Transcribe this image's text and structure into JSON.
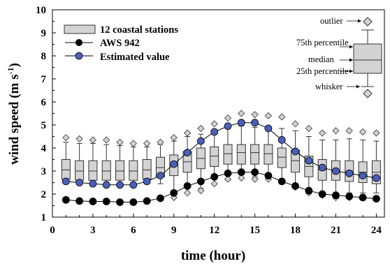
{
  "chart_data": {
    "type": "box+line",
    "xlabel": "time (hour)",
    "ylabel": "wind speed (m s",
    "ylabel_sup": "-1",
    "ylabel_end": ")",
    "xlim": [
      0,
      24.6
    ],
    "ylim": [
      1,
      10
    ],
    "xticks": [
      0,
      3,
      6,
      9,
      12,
      15,
      18,
      21,
      24
    ],
    "yticks": [
      1,
      2,
      3,
      4,
      5,
      6,
      7,
      8,
      9,
      10
    ],
    "hours": [
      1,
      2,
      3,
      4,
      5,
      6,
      7,
      8,
      9,
      10,
      11,
      12,
      13,
      14,
      15,
      16,
      17,
      18,
      19,
      20,
      21,
      22,
      23,
      24
    ],
    "boxes": {
      "name": "12 coastal stations",
      "whisker_low": [
        2.45,
        2.45,
        2.45,
        2.45,
        2.45,
        2.45,
        2.45,
        2.45,
        2.0,
        2.05,
        2.25,
        2.45,
        2.6,
        2.7,
        2.75,
        2.7,
        2.6,
        2.45,
        2.15,
        2.05,
        2.05,
        2.05,
        2.05,
        2.05
      ],
      "q1": [
        2.65,
        2.6,
        2.6,
        2.6,
        2.6,
        2.6,
        2.65,
        2.75,
        2.8,
        2.95,
        3.1,
        3.2,
        3.3,
        3.3,
        3.3,
        3.3,
        3.15,
        2.95,
        2.75,
        2.6,
        2.6,
        2.55,
        2.5,
        2.45
      ],
      "median": [
        3.05,
        3.0,
        3.0,
        3.0,
        3.0,
        3.0,
        3.05,
        3.15,
        3.25,
        3.4,
        3.55,
        3.65,
        3.75,
        3.8,
        3.8,
        3.75,
        3.6,
        3.45,
        3.2,
        3.05,
        3.0,
        3.0,
        2.95,
        2.95
      ],
      "q3": [
        3.5,
        3.45,
        3.45,
        3.45,
        3.45,
        3.45,
        3.5,
        3.6,
        3.7,
        3.85,
        4.0,
        4.05,
        4.15,
        4.15,
        4.15,
        4.15,
        4.0,
        3.9,
        3.65,
        3.5,
        3.45,
        3.45,
        3.4,
        3.45
      ],
      "whisker_high": [
        4.25,
        4.2,
        4.2,
        4.15,
        4.1,
        4.05,
        4.05,
        4.15,
        4.3,
        4.5,
        4.6,
        4.75,
        4.85,
        4.95,
        4.9,
        4.85,
        4.85,
        4.75,
        4.5,
        4.35,
        4.35,
        4.4,
        4.35,
        4.3
      ],
      "outlier_high": [
        4.45,
        4.4,
        4.35,
        4.35,
        4.25,
        4.2,
        4.2,
        4.25,
        4.45,
        4.65,
        4.85,
        5.05,
        5.3,
        5.5,
        5.45,
        5.4,
        5.35,
        5.05,
        4.85,
        4.65,
        4.75,
        4.75,
        4.7,
        4.65
      ],
      "outlier_low": [
        null,
        null,
        null,
        null,
        null,
        null,
        null,
        null,
        1.85,
        2.05,
        2.15,
        2.45,
        2.65,
        2.7,
        2.65,
        2.65,
        2.55,
        2.3,
        2.05,
        1.95,
        1.85,
        1.85,
        1.85,
        null
      ]
    },
    "series": [
      {
        "name": "AWS 942",
        "values": [
          1.75,
          1.7,
          1.68,
          1.68,
          1.65,
          1.65,
          1.7,
          1.82,
          2.05,
          2.35,
          2.55,
          2.75,
          2.9,
          2.95,
          2.95,
          2.8,
          2.55,
          2.35,
          2.15,
          2.0,
          1.95,
          1.9,
          1.85,
          1.8
        ]
      },
      {
        "name": "Estimated value",
        "values": [
          2.55,
          2.5,
          2.45,
          2.4,
          2.4,
          2.4,
          2.55,
          2.8,
          3.3,
          3.8,
          4.3,
          4.7,
          4.95,
          5.1,
          5.1,
          4.85,
          4.35,
          3.85,
          3.45,
          3.15,
          3.0,
          2.9,
          2.8,
          2.7
        ]
      }
    ],
    "legend": [
      {
        "label": "12 coastal stations"
      },
      {
        "label": "AWS 942"
      },
      {
        "label": "Estimated value"
      }
    ],
    "box_key": {
      "outlier": "outlier",
      "p75": "75th percentile",
      "median": "median",
      "p25": "25th percentile",
      "whisker": "whisker"
    },
    "colors": {
      "box_fill": "#d3d3d3",
      "box_stroke": "#333333",
      "aws_marker": "#000000",
      "estimated_marker": "#4a5fb8",
      "outlier_fill": "#d3d3d3"
    }
  }
}
